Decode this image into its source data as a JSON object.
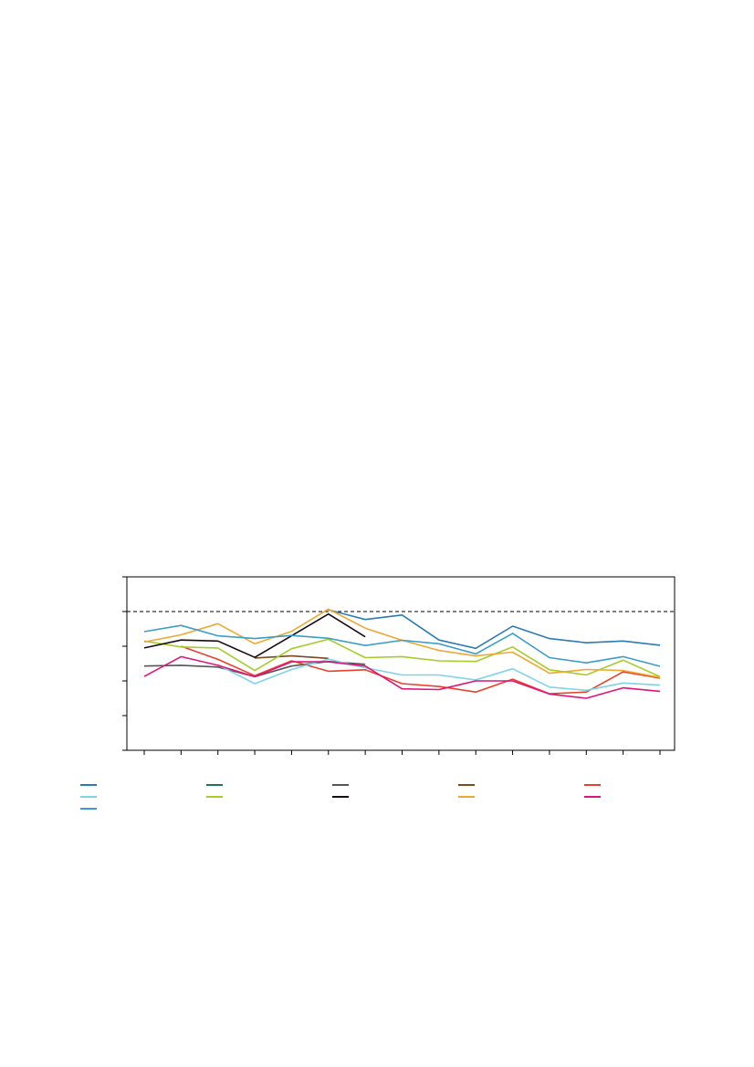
{
  "chart_data": {
    "type": "line",
    "title": "",
    "xlabel": "",
    "ylabel": "",
    "ylim": [
      0,
      5
    ],
    "reference_line": {
      "y": 4,
      "style": "dashed",
      "color": "#000000"
    },
    "x": [
      1,
      2,
      3,
      4,
      5,
      6,
      7,
      8,
      9,
      10,
      11,
      12,
      13,
      14,
      15
    ],
    "series": [
      {
        "color": "#2b7bb5",
        "values": [
          null,
          null,
          null,
          null,
          null,
          4.05,
          3.77,
          3.9,
          3.18,
          2.94,
          3.58,
          3.22,
          3.1,
          3.15,
          3.03
        ]
      },
      {
        "color": "#1a7a4c",
        "values": [
          null,
          null,
          null,
          null,
          null,
          null,
          null,
          null,
          null,
          null,
          null,
          null,
          null,
          null,
          null
        ]
      },
      {
        "color": "#555555",
        "values": [
          2.43,
          2.45,
          2.4,
          2.12,
          2.43,
          2.56,
          2.48,
          null,
          null,
          null,
          null,
          null,
          null,
          null,
          null
        ]
      },
      {
        "color": "#7b4a1e",
        "values": [
          null,
          null,
          null,
          2.66,
          2.72,
          2.65,
          null,
          null,
          null,
          null,
          null,
          null,
          null,
          null,
          null
        ]
      },
      {
        "color": "#e8412a",
        "values": [
          null,
          3.0,
          2.62,
          2.15,
          2.58,
          2.28,
          2.32,
          1.92,
          1.84,
          1.68,
          2.05,
          1.63,
          1.68,
          2.26,
          2.08
        ]
      },
      {
        "color": "#7fd3e6",
        "values": [
          null,
          null,
          2.46,
          1.92,
          2.33,
          2.63,
          2.38,
          2.17,
          2.17,
          2.03,
          2.35,
          1.82,
          1.73,
          1.94,
          1.88
        ]
      },
      {
        "color": "#a4cd2a",
        "values": [
          3.15,
          2.98,
          2.95,
          2.3,
          2.93,
          3.2,
          2.67,
          2.7,
          2.58,
          2.56,
          2.98,
          2.32,
          2.17,
          2.6,
          2.12
        ]
      },
      {
        "color": "#1a0a12",
        "values": [
          2.95,
          3.18,
          3.15,
          2.68,
          3.3,
          3.93,
          3.27,
          null,
          null,
          null,
          null,
          null,
          null,
          null,
          null
        ]
      },
      {
        "color": "#f0a830",
        "values": [
          3.12,
          3.33,
          3.65,
          3.07,
          3.43,
          4.07,
          3.52,
          3.17,
          2.88,
          2.72,
          2.83,
          2.22,
          2.33,
          2.3,
          2.1
        ]
      },
      {
        "color": "#e0157a",
        "values": [
          2.13,
          2.7,
          2.45,
          2.12,
          2.55,
          2.55,
          2.43,
          1.77,
          1.75,
          2.0,
          2.0,
          1.62,
          1.5,
          1.8,
          1.7
        ]
      },
      {
        "color": "#3b9ec8",
        "values": [
          3.42,
          3.6,
          3.3,
          3.22,
          3.31,
          3.23,
          3.02,
          3.17,
          3.07,
          2.78,
          3.37,
          2.67,
          2.52,
          2.7,
          2.42
        ]
      }
    ],
    "legend": {
      "placement": "bottom",
      "columns": 5,
      "labels": [
        "",
        "",
        "",
        "",
        "",
        "",
        "",
        "",
        "",
        "",
        ""
      ]
    },
    "grid": false
  }
}
